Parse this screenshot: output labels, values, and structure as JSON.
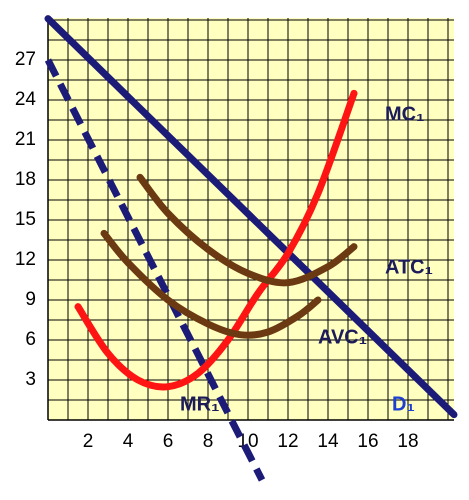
{
  "chart_data": {
    "type": "line",
    "xlim": [
      0,
      20.3
    ],
    "ylim": [
      0,
      30.15
    ],
    "xticks": [
      2,
      4,
      6,
      8,
      10,
      12,
      14,
      16,
      18
    ],
    "yticks": [
      3,
      6,
      9,
      12,
      15,
      18,
      21,
      24,
      27
    ],
    "grid": true,
    "background": "#ffffc0",
    "series": [
      {
        "name": "D₁",
        "color": "#1c1c78",
        "style": "solid",
        "name_color": "#1f3fd0",
        "x": [
          0,
          20.3
        ],
        "values": [
          30.1,
          0.4
        ]
      },
      {
        "name": "MR₁",
        "color": "#1c1c78",
        "style": "dashed",
        "x": [
          0,
          10.7
        ],
        "values": [
          27,
          -4.5
        ]
      },
      {
        "name": "MC₁",
        "color": "#ff1414",
        "style": "solid",
        "x": [
          1.5,
          3,
          4.5,
          6,
          7.5,
          9,
          10.5,
          12,
          13.5,
          15.3
        ],
        "values": [
          8.5,
          5,
          3,
          2.5,
          3.5,
          6,
          9.5,
          12.5,
          17,
          24.5
        ]
      },
      {
        "name": "ATC₁",
        "color": "#6b3a12",
        "style": "solid",
        "x": [
          4.6,
          6,
          8,
          10,
          12,
          14,
          15.3
        ],
        "values": [
          18.2,
          15.5,
          12.8,
          11,
          10.3,
          11.5,
          13
        ]
      },
      {
        "name": "AVC₁",
        "color": "#6b3a12",
        "style": "solid",
        "x": [
          2.8,
          4,
          6,
          8,
          9.6,
          11,
          12.5,
          13.5
        ],
        "values": [
          14,
          11.8,
          9,
          7.2,
          6.4,
          6.6,
          7.8,
          9
        ]
      }
    ]
  }
}
